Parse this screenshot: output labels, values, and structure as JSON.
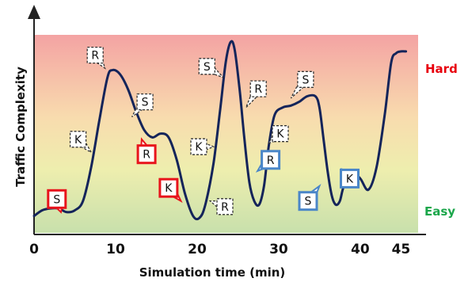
{
  "chart_data": {
    "type": "line",
    "xlabel": "Simulation time (min)",
    "ylabel": "Traffic Complexity",
    "xlim": [
      0,
      47
    ],
    "ylim": [
      0,
      1
    ],
    "x_ticks": [
      "0",
      "10",
      "20",
      "30",
      "40",
      "45"
    ],
    "zones": {
      "high": {
        "label": "Hard",
        "color": "#e8000d"
      },
      "low": {
        "label": "Easy",
        "color": "#1aa64a"
      }
    },
    "background_gradient": [
      "#f4a3a3",
      "#f8dcae",
      "#eeeeae",
      "#c8e0ac"
    ],
    "line_color": "#14245a",
    "series": [
      {
        "x": [
          0,
          1,
          2,
          3,
          4,
          5,
          6,
          7,
          8,
          9,
          9.6,
          10.5,
          11.5,
          12.5,
          13.5,
          14.5,
          15.5,
          16.5,
          17.5,
          18.5,
          19.5,
          20.3,
          21,
          22,
          22.8,
          23.5,
          24.1,
          24.6,
          25.2,
          25.8,
          26.4,
          27,
          27.6,
          28.2,
          28.8,
          29.5,
          30.5,
          31.5,
          32.5,
          33.5,
          34.5,
          35,
          35.5,
          36,
          36.5,
          37,
          37.5,
          38,
          39,
          40,
          41,
          42,
          43,
          43.8,
          44.4,
          45,
          45.6
        ],
        "y": [
          0.04,
          0.07,
          0.08,
          0.08,
          0.06,
          0.07,
          0.12,
          0.3,
          0.55,
          0.78,
          0.82,
          0.8,
          0.72,
          0.6,
          0.5,
          0.46,
          0.48,
          0.46,
          0.34,
          0.16,
          0.04,
          0.03,
          0.1,
          0.32,
          0.6,
          0.86,
          0.97,
          0.93,
          0.72,
          0.45,
          0.22,
          0.12,
          0.1,
          0.2,
          0.42,
          0.58,
          0.62,
          0.63,
          0.65,
          0.68,
          0.68,
          0.62,
          0.45,
          0.28,
          0.15,
          0.1,
          0.12,
          0.2,
          0.27,
          0.24,
          0.18,
          0.3,
          0.58,
          0.86,
          0.91,
          0.92,
          0.92
        ]
      }
    ],
    "annotations": [
      {
        "text": "R",
        "x": 7.5,
        "y": 0.9,
        "ax": 8.7,
        "ay": 0.83,
        "style": "dashed"
      },
      {
        "text": "S",
        "x": 13.6,
        "y": 0.65,
        "ax": 12.0,
        "ay": 0.57,
        "style": "dashed"
      },
      {
        "text": "K",
        "x": 5.4,
        "y": 0.45,
        "ax": 7.0,
        "ay": 0.38,
        "style": "dashed"
      },
      {
        "text": "R",
        "x": 13.8,
        "y": 0.37,
        "ax": 13.2,
        "ay": 0.45,
        "style": "red"
      },
      {
        "text": "K",
        "x": 16.5,
        "y": 0.19,
        "ax": 18.0,
        "ay": 0.12,
        "style": "red"
      },
      {
        "text": "S",
        "x": 2.8,
        "y": 0.13,
        "ax": 3.3,
        "ay": 0.06,
        "style": "red"
      },
      {
        "text": "S",
        "x": 21.2,
        "y": 0.84,
        "ax": 23.2,
        "ay": 0.78,
        "style": "dashed"
      },
      {
        "text": "K",
        "x": 20.2,
        "y": 0.41,
        "ax": 22.0,
        "ay": 0.41,
        "style": "dashed"
      },
      {
        "text": "R",
        "x": 27.5,
        "y": 0.72,
        "ax": 26.0,
        "ay": 0.62,
        "style": "dashed"
      },
      {
        "text": "R",
        "x": 23.4,
        "y": 0.09,
        "ax": 21.6,
        "ay": 0.12,
        "style": "dashed"
      },
      {
        "text": "S",
        "x": 33.3,
        "y": 0.77,
        "ax": 31.5,
        "ay": 0.67,
        "style": "dashed"
      },
      {
        "text": "K",
        "x": 30.2,
        "y": 0.48,
        "ax": 28.8,
        "ay": 0.43,
        "style": "dashed"
      },
      {
        "text": "R",
        "x": 29.0,
        "y": 0.34,
        "ax": 27.4,
        "ay": 0.28,
        "style": "blue"
      },
      {
        "text": "S",
        "x": 33.6,
        "y": 0.12,
        "ax": 35.0,
        "ay": 0.2,
        "style": "blue"
      },
      {
        "text": "K",
        "x": 38.7,
        "y": 0.24,
        "ax": 37.7,
        "ay": 0.29,
        "style": "blue"
      }
    ]
  }
}
